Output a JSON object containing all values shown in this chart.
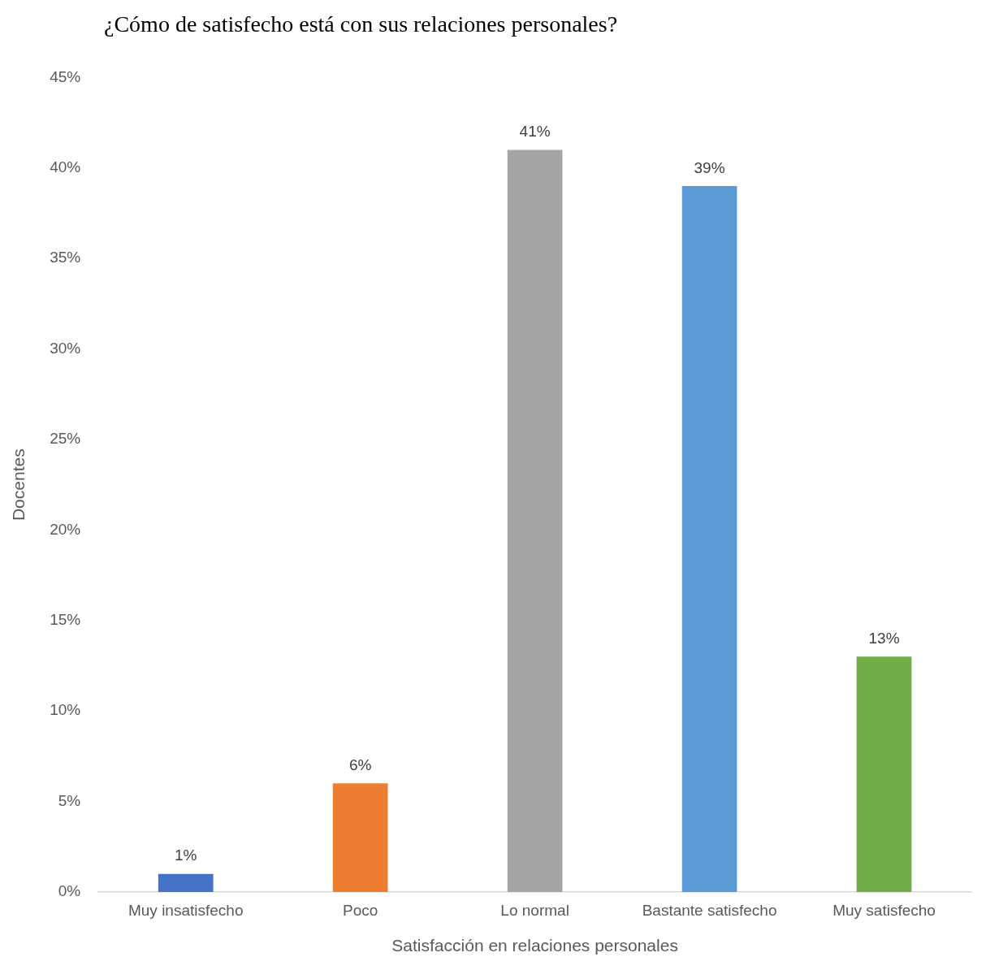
{
  "chart_data": {
    "type": "bar",
    "title": "¿Cómo de satisfecho está con sus relaciones personales?",
    "xlabel": "Satisfacción en relaciones personales",
    "ylabel": "Docentes",
    "categories": [
      "Muy insatisfecho",
      "Poco",
      "Lo normal",
      "Bastante satisfecho",
      "Muy satisfecho"
    ],
    "values": [
      1,
      6,
      41,
      39,
      13
    ],
    "colors": [
      "#4472c4",
      "#ed7d31",
      "#a5a5a5",
      "#5b9bd5",
      "#70ad47"
    ],
    "value_labels": [
      "1%",
      "6%",
      "41%",
      "39%",
      "13%"
    ],
    "ylim": [
      0,
      45
    ],
    "yticks": [
      {
        "value": 0,
        "label": "0%"
      },
      {
        "value": 5,
        "label": "5%"
      },
      {
        "value": 10,
        "label": "10%"
      },
      {
        "value": 15,
        "label": "15%"
      },
      {
        "value": 20,
        "label": "20%"
      },
      {
        "value": 25,
        "label": "25%"
      },
      {
        "value": 30,
        "label": "30%"
      },
      {
        "value": 35,
        "label": "35%"
      },
      {
        "value": 40,
        "label": "40%"
      },
      {
        "value": 45,
        "label": "45%"
      }
    ],
    "grid": false,
    "legend": false
  }
}
